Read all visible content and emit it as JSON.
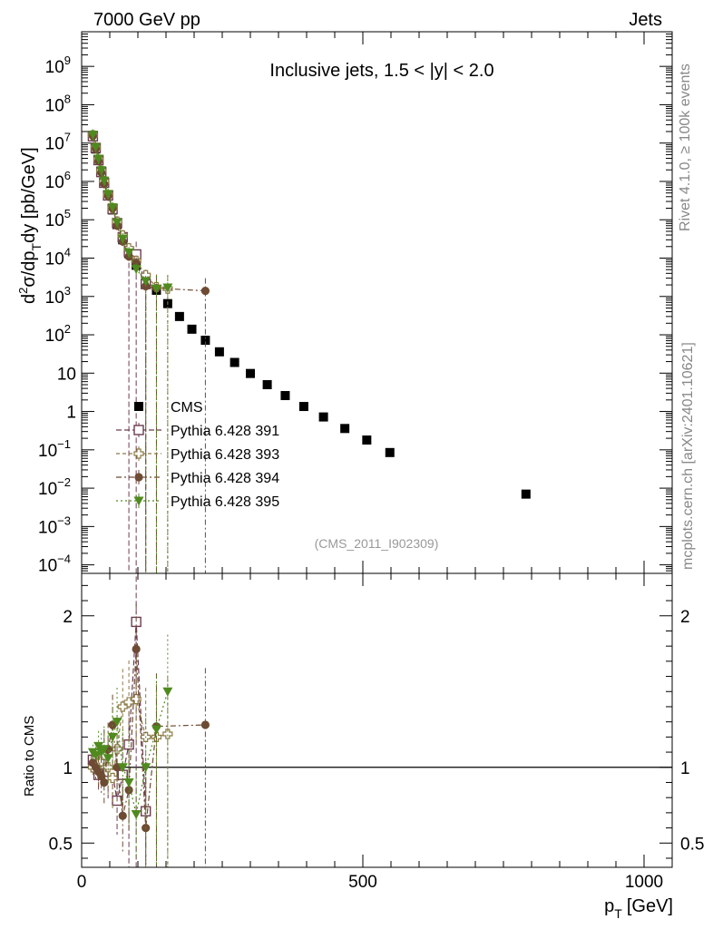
{
  "header": {
    "left": "7000 GeV pp",
    "right": "Jets",
    "side_top": "Rivet 4.1.0, ≥ 100k events",
    "side_bottom": "mcplots.cern.ch [arXiv:2401.10621]",
    "analysis": "(CMS_2011_I902309)"
  },
  "colors": {
    "cms": "#000000",
    "p391": "#6b3d50",
    "p393": "#8c7a45",
    "p394": "#6e4b33",
    "p395": "#4f8a1e"
  },
  "chart_data": {
    "type": "scatter",
    "title": "Inclusive jets, 1.5 < |y| < 2.0",
    "xlabel_main": "p",
    "xlabel_sub": "T",
    "xlabel_unit": "[GeV]",
    "ylabel_parts": [
      "d",
      "2",
      "σ/dp",
      "T",
      "dy [pb/GeV]"
    ],
    "ratio_ylabel": "Ratio to CMS",
    "xlim": [
      0,
      1050
    ],
    "ylim": [
      6e-05,
      8000000000
    ],
    "ratio_ylim": [
      0.34,
      2.28
    ],
    "x_ticks": [
      {
        "value": 0,
        "label": "0"
      },
      {
        "value": 500,
        "label": "500"
      },
      {
        "value": 1000,
        "label": "1000"
      }
    ],
    "y_ticks": [
      {
        "exp": 9,
        "label": "10",
        "sup": "9"
      },
      {
        "exp": 8,
        "label": "10",
        "sup": "8"
      },
      {
        "exp": 7,
        "label": "10",
        "sup": "7"
      },
      {
        "exp": 6,
        "label": "10",
        "sup": "6"
      },
      {
        "exp": 5,
        "label": "10",
        "sup": "5"
      },
      {
        "exp": 4,
        "label": "10",
        "sup": "4"
      },
      {
        "exp": 3,
        "label": "10",
        "sup": "3"
      },
      {
        "exp": 2,
        "label": "10",
        "sup": "2"
      },
      {
        "exp": 1,
        "label": "10",
        "sup": ""
      },
      {
        "exp": 0,
        "label": "1",
        "sup": ""
      },
      {
        "exp": -1,
        "label": "10",
        "sup": "−1"
      },
      {
        "exp": -2,
        "label": "10",
        "sup": "−2"
      },
      {
        "exp": -3,
        "label": "10",
        "sup": "−3"
      },
      {
        "exp": -4,
        "label": "10",
        "sup": "−4"
      }
    ],
    "ratio_ticks": [
      {
        "value": 0.5,
        "label": "0.5"
      },
      {
        "value": 1,
        "label": "1"
      },
      {
        "value": 2,
        "label": "2"
      }
    ],
    "series": [
      {
        "name": "CMS",
        "key": "cms",
        "marker": "square",
        "x": [
          20,
          25,
          30,
          35,
          40,
          47,
          55,
          63,
          73,
          84,
          97,
          114,
          133,
          153,
          174,
          196,
          220,
          245,
          272,
          300,
          330,
          362,
          395,
          430,
          468,
          507,
          548,
          790
        ],
        "y": [
          15000000,
          7000000,
          3500000,
          1800000,
          950000,
          430000,
          180000,
          75000,
          30000,
          13000,
          6500,
          3000,
          1450,
          650,
          300,
          140,
          72,
          36,
          19,
          9.8,
          5,
          2.6,
          1.35,
          0.72,
          0.36,
          0.18,
          0.085,
          0.007
        ],
        "ratio": []
      },
      {
        "name": "Pythia 6.428 391",
        "key": "p391",
        "marker": "open-square",
        "x": [
          20,
          25,
          30,
          35,
          40,
          47,
          55,
          63,
          73,
          84,
          97,
          114
        ],
        "y": [
          15000000,
          7500000,
          3600000,
          1750000,
          920000,
          430000,
          190000,
          82000,
          35000,
          14500,
          12500,
          2100
        ],
        "ratio": [
          1.05,
          1.0,
          0.95,
          1.02,
          1.1,
          0.97,
          0.96,
          0.78,
          0.95,
          1.15,
          1.96,
          0.71
        ]
      },
      {
        "name": "Pythia 6.428 393",
        "key": "p393",
        "marker": "open-cross",
        "x": [
          20,
          25,
          30,
          35,
          40,
          47,
          55,
          63,
          73,
          84,
          97,
          114,
          133,
          153
        ],
        "y": [
          16000000,
          7600000,
          3700000,
          1900000,
          1000000,
          440000,
          200000,
          90000,
          39000,
          18000,
          8500,
          3600,
          1750,
          1600
        ],
        "ratio": [
          1.0,
          1.06,
          1.03,
          1.04,
          1.08,
          1.0,
          0.93,
          1.12,
          1.4,
          1.43,
          1.45,
          1.2,
          1.2,
          1.22
        ]
      },
      {
        "name": "Pythia 6.428 394",
        "key": "p394",
        "marker": "circle",
        "x": [
          20,
          25,
          30,
          35,
          40,
          47,
          55,
          63,
          73,
          84,
          97,
          114,
          133,
          220
        ],
        "y": [
          15500000,
          7200000,
          3400000,
          1700000,
          860000,
          420000,
          200000,
          70000,
          27000,
          11000,
          7500,
          1850,
          1650,
          1400
        ],
        "ratio": [
          1.03,
          1.0,
          0.97,
          0.94,
          0.9,
          1.12,
          1.28,
          1.0,
          0.68,
          0.85,
          1.78,
          0.6,
          1.27,
          1.28
        ]
      },
      {
        "name": "Pythia 6.428 395",
        "key": "p395",
        "marker": "triangle-down",
        "x": [
          20,
          25,
          30,
          35,
          40,
          47,
          55,
          63,
          73,
          84,
          97,
          114,
          133,
          153
        ],
        "y": [
          16500000,
          7800000,
          3900000,
          1950000,
          1050000,
          470000,
          210000,
          85000,
          32000,
          14000,
          5200,
          2500,
          1600,
          1700
        ],
        "ratio": [
          1.1,
          1.08,
          1.14,
          1.1,
          1.12,
          1.06,
          1.2,
          1.3,
          1.0,
          0.9,
          0.69,
          1.0,
          1.25,
          1.5
        ]
      }
    ]
  }
}
